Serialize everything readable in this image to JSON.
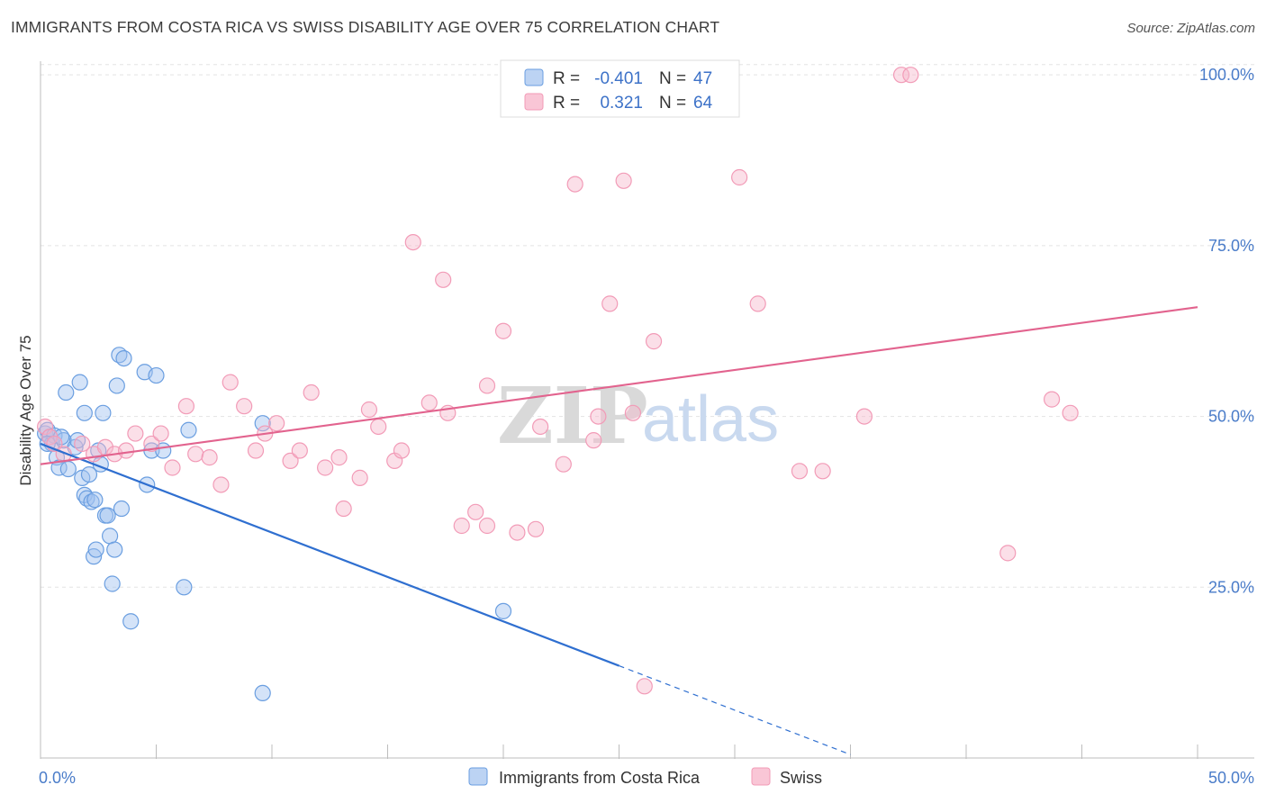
{
  "title": "IMMIGRANTS FROM COSTA RICA VS SWISS DISABILITY AGE OVER 75 CORRELATION CHART",
  "source": "Source: ZipAtlas.com",
  "watermark": {
    "zip": "ZIP",
    "atlas": "atlas"
  },
  "legend": {
    "r_label": "R =",
    "n_label": "N =",
    "rows": [
      {
        "r": "-0.401",
        "n": "47"
      },
      {
        "r": "0.321",
        "n": "64"
      }
    ]
  },
  "chart_data": {
    "type": "scatter",
    "title": "IMMIGRANTS FROM COSTA RICA VS SWISS DISABILITY AGE OVER 75 CORRELATION CHART",
    "xlabel": "",
    "ylabel": "Disability Age Over 75",
    "xlim": [
      0,
      50
    ],
    "ylim": [
      0,
      102
    ],
    "x_tick_labels": [
      "0.0%",
      "50.0%"
    ],
    "y_tick_labels": [
      "25.0%",
      "50.0%",
      "75.0%",
      "100.0%"
    ],
    "y_ticks": [
      25,
      50,
      75,
      100
    ],
    "grid": true,
    "legend_position": "top-center",
    "colors": {
      "blue": "#6a9ee0",
      "pink": "#f29bb7",
      "blue_line": "#2f6fd0",
      "pink_line": "#e2638e"
    },
    "series": [
      {
        "name": "Immigrants from Costa Rica",
        "color": "#6a9ee0",
        "points": [
          [
            0.2,
            47.5
          ],
          [
            0.3,
            48
          ],
          [
            0.4,
            47
          ],
          [
            0.5,
            46
          ],
          [
            0.6,
            47.2
          ],
          [
            0.7,
            44
          ],
          [
            0.8,
            42.5
          ],
          [
            1.0,
            46.5
          ],
          [
            1.1,
            53.5
          ],
          [
            1.2,
            42.3
          ],
          [
            1.5,
            45.5
          ],
          [
            1.6,
            46.5
          ],
          [
            1.7,
            55
          ],
          [
            1.8,
            41
          ],
          [
            1.9,
            38.5
          ],
          [
            1.9,
            50.5
          ],
          [
            2.0,
            38
          ],
          [
            2.1,
            41.5
          ],
          [
            2.2,
            37.5
          ],
          [
            2.3,
            29.5
          ],
          [
            2.4,
            30.5
          ],
          [
            2.5,
            45
          ],
          [
            2.6,
            43
          ],
          [
            2.7,
            50.5
          ],
          [
            2.8,
            35.5
          ],
          [
            2.9,
            35.5
          ],
          [
            3.0,
            32.5
          ],
          [
            3.1,
            25.5
          ],
          [
            3.2,
            30.5
          ],
          [
            3.3,
            54.5
          ],
          [
            3.5,
            36.5
          ],
          [
            3.4,
            59
          ],
          [
            3.6,
            58.5
          ],
          [
            3.9,
            20
          ],
          [
            4.5,
            56.5
          ],
          [
            4.6,
            40
          ],
          [
            4.8,
            45
          ],
          [
            5.0,
            56
          ],
          [
            5.3,
            45
          ],
          [
            6.2,
            25
          ],
          [
            6.4,
            48
          ],
          [
            9.6,
            9.5
          ],
          [
            9.6,
            49
          ],
          [
            20.0,
            21.5
          ],
          [
            0.3,
            46
          ],
          [
            0.9,
            47
          ],
          [
            2.35,
            37.8
          ]
        ]
      },
      {
        "name": "Swiss",
        "color": "#f29bb7",
        "points": [
          [
            0.2,
            48.5
          ],
          [
            0.4,
            47
          ],
          [
            0.6,
            46
          ],
          [
            1.0,
            44.5
          ],
          [
            1.8,
            46
          ],
          [
            2.3,
            44.5
          ],
          [
            2.8,
            45.5
          ],
          [
            3.2,
            44.5
          ],
          [
            3.7,
            45
          ],
          [
            4.1,
            47.5
          ],
          [
            4.8,
            46
          ],
          [
            5.2,
            47.5
          ],
          [
            5.7,
            42.5
          ],
          [
            6.3,
            51.5
          ],
          [
            6.7,
            44.5
          ],
          [
            7.3,
            44
          ],
          [
            7.8,
            40
          ],
          [
            8.2,
            55
          ],
          [
            8.8,
            51.5
          ],
          [
            9.3,
            45
          ],
          [
            9.7,
            47.5
          ],
          [
            10.2,
            49
          ],
          [
            10.8,
            43.5
          ],
          [
            11.2,
            45
          ],
          [
            11.7,
            53.5
          ],
          [
            12.3,
            42.5
          ],
          [
            12.9,
            44
          ],
          [
            13.1,
            36.5
          ],
          [
            13.8,
            41
          ],
          [
            14.2,
            51
          ],
          [
            14.6,
            48.5
          ],
          [
            15.3,
            43.5
          ],
          [
            15.6,
            45
          ],
          [
            16.1,
            75.5
          ],
          [
            16.8,
            52
          ],
          [
            17.4,
            70
          ],
          [
            17.6,
            50.5
          ],
          [
            18.2,
            34
          ],
          [
            18.8,
            36
          ],
          [
            19.3,
            34
          ],
          [
            19.3,
            54.5
          ],
          [
            20.0,
            62.5
          ],
          [
            20.6,
            33
          ],
          [
            21.4,
            33.5
          ],
          [
            21.6,
            48.5
          ],
          [
            22.6,
            43
          ],
          [
            23.1,
            84
          ],
          [
            23.9,
            46.5
          ],
          [
            24.1,
            50
          ],
          [
            24.6,
            66.5
          ],
          [
            25.2,
            84.5
          ],
          [
            25.6,
            50.5
          ],
          [
            26.1,
            10.5
          ],
          [
            26.5,
            61
          ],
          [
            30.2,
            85
          ],
          [
            31.0,
            66.5
          ],
          [
            32.8,
            42
          ],
          [
            33.8,
            42
          ],
          [
            35.6,
            50
          ],
          [
            37.2,
            100
          ],
          [
            37.6,
            100
          ],
          [
            41.8,
            30
          ],
          [
            43.7,
            52.5
          ],
          [
            44.5,
            50.5
          ]
        ]
      }
    ],
    "trend_lines": [
      {
        "series": "Immigrants from Costa Rica",
        "x0": 0,
        "y0": 46,
        "x1": 25,
        "y1": 13.5,
        "dashed_to_x": 35,
        "dashed_to_y": 0.5
      },
      {
        "series": "Swiss",
        "x0": 0,
        "y0": 43,
        "x1": 50,
        "y1": 66
      }
    ]
  }
}
